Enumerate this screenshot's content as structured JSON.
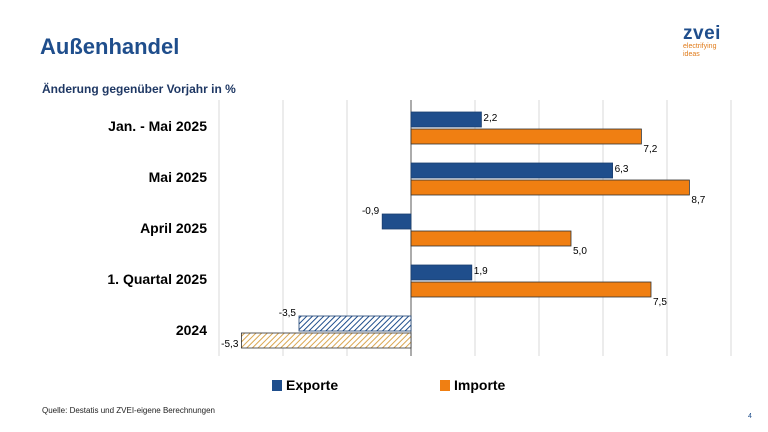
{
  "header": {
    "title": "Außenhandel",
    "logo_name": "zvei",
    "logo_tagline_1": "electrifying",
    "logo_tagline_2": "ideas"
  },
  "footer": {
    "source": "Quelle: Destatis und ZVEI-eigene Berechnungen",
    "page_number": "4"
  },
  "colors": {
    "exporte": "#1f4e8c",
    "importe": "#f07f12",
    "exporte_hatched": "#1f4e8c",
    "importe_hatched": "#e0b060"
  },
  "chart_data": {
    "type": "bar",
    "orientation": "horizontal",
    "title": "Änderung gegenüber Vorjahr in %",
    "categories": [
      "Jan. - Mai 2025",
      "Mai 2025",
      "April 2025",
      "1. Quartal 2025",
      "2024"
    ],
    "series": [
      {
        "name": "Exporte",
        "values": [
          2.2,
          6.3,
          -0.9,
          1.9,
          -3.5
        ],
        "labels": [
          "2,2",
          "6,3",
          "-0,9",
          "1,9",
          "-3,5"
        ]
      },
      {
        "name": "Importe",
        "values": [
          7.2,
          8.7,
          5.0,
          7.5,
          -5.3
        ],
        "labels": [
          "7,2",
          "8,7",
          "5,0",
          "7,5",
          "-5,3"
        ]
      }
    ],
    "hatched_categories": [
      "2024"
    ],
    "xlim": [
      -6,
      10
    ],
    "grid": true,
    "legend_position": "bottom"
  }
}
